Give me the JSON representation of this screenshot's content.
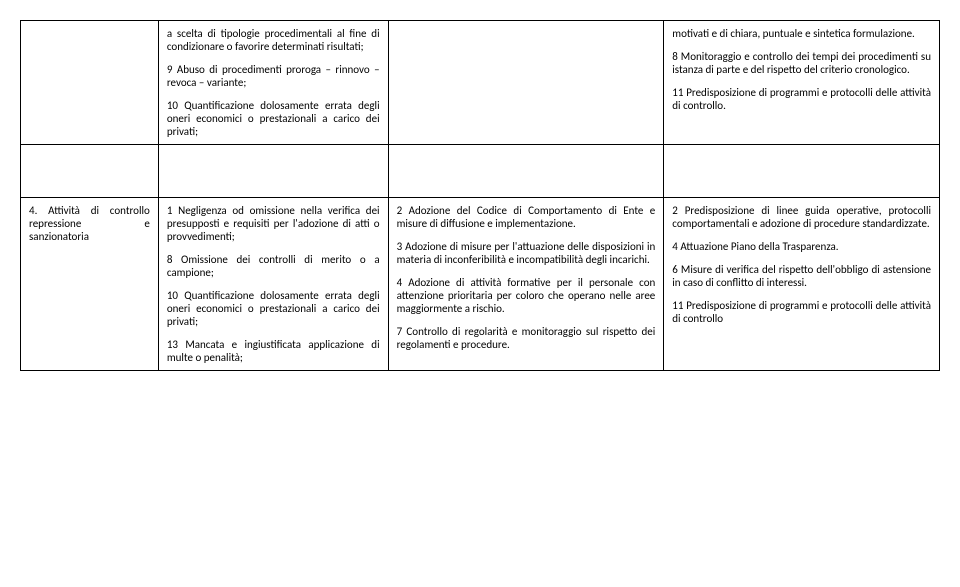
{
  "row1": {
    "col2": {
      "p1": "a scelta di tipologie procedimentali al fine di condizionare o favorire determinati risultati;",
      "p2": "9 Abuso di procedimenti proroga – rinnovo – revoca – variante;",
      "p3": "10 Quantificazione dolosamente errata degli oneri economici o prestazionali a carico dei privati;"
    },
    "col4": {
      "p1": "motivati e di chiara, puntuale e sintetica formulazione.",
      "p2": "8 Monitoraggio e controllo dei tempi dei procedimenti su istanza di parte e del rispetto del criterio cronologico.",
      "p3": "11 Predisposizione di programmi e protocolli delle attività di controllo."
    }
  },
  "row2": {
    "col1": "4. Attività di controllo repressione e sanzionatoria",
    "col2": {
      "p1": "1 Negligenza od omissione nella verifica dei presupposti e requisiti per l'adozione di atti o provvedimenti;",
      "p2": "8 Omissione dei controlli di merito o a campione;",
      "p3": "10 Quantificazione dolosamente errata degli oneri economici o prestazionali a carico dei privati;",
      "p4": "13 Mancata e ingiustificata applicazione di multe o penalità;"
    },
    "col3": {
      "p1": "2 Adozione del Codice di Comportamento di Ente e misure di diffusione e implementazione.",
      "p2": "3 Adozione di misure per l'attuazione delle disposizioni in materia di inconferibilità e incompatibilità degli incarichi.",
      "p3": "4 Adozione di attività formative per il personale con attenzione prioritaria per coloro che operano nelle aree maggiormente a rischio.",
      "p4": "7 Controllo di regolarità e monitoraggio sul rispetto dei regolamenti e procedure."
    },
    "col4": {
      "p1": "2 Predisposizione di linee guida operative, protocolli comportamentali e adozione di procedure standardizzate.",
      "p2": "4 Attuazione Piano della Trasparenza.",
      "p3": "6 Misure di verifica del rispetto dell'obbligo di astensione in caso di conflitto di interessi.",
      "p4": "11 Predisposizione di programmi e protocolli delle attività di controllo"
    }
  }
}
